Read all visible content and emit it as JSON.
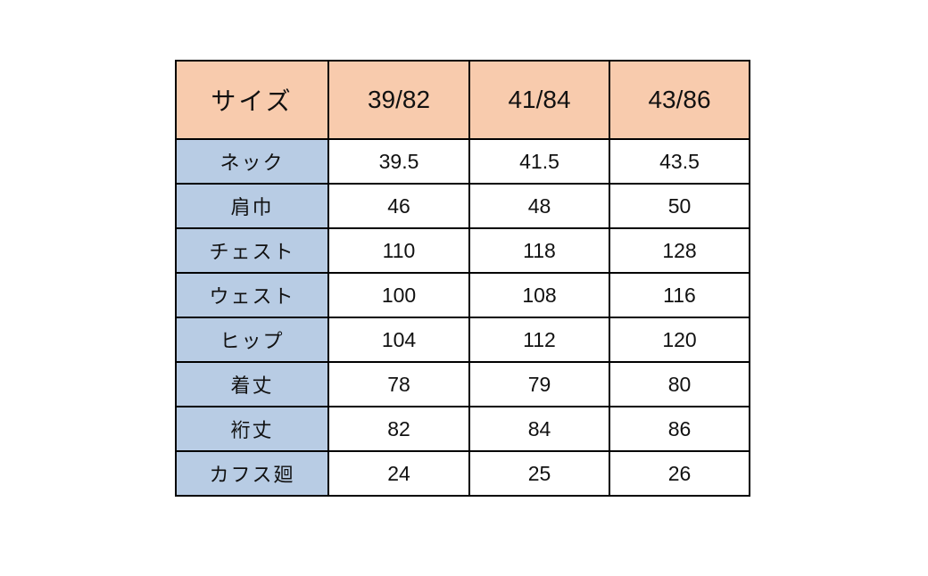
{
  "table": {
    "header": [
      "サイズ",
      "39/82",
      "41/84",
      "43/86"
    ],
    "rows": [
      [
        "ネック",
        "39.5",
        "41.5",
        "43.5"
      ],
      [
        "肩巾",
        "46",
        "48",
        "50"
      ],
      [
        "チェスト",
        "110",
        "118",
        "128"
      ],
      [
        "ウェスト",
        "100",
        "108",
        "116"
      ],
      [
        "ヒップ",
        "104",
        "112",
        "120"
      ],
      [
        "着丈",
        "78",
        "79",
        "80"
      ],
      [
        "裄丈",
        "82",
        "84",
        "86"
      ],
      [
        "カフス廻",
        "24",
        "25",
        "26"
      ]
    ],
    "colors": {
      "header_bg": "#f8cbad",
      "label_bg": "#b8cce4",
      "cell_bg": "#ffffff",
      "border": "#000000"
    }
  }
}
